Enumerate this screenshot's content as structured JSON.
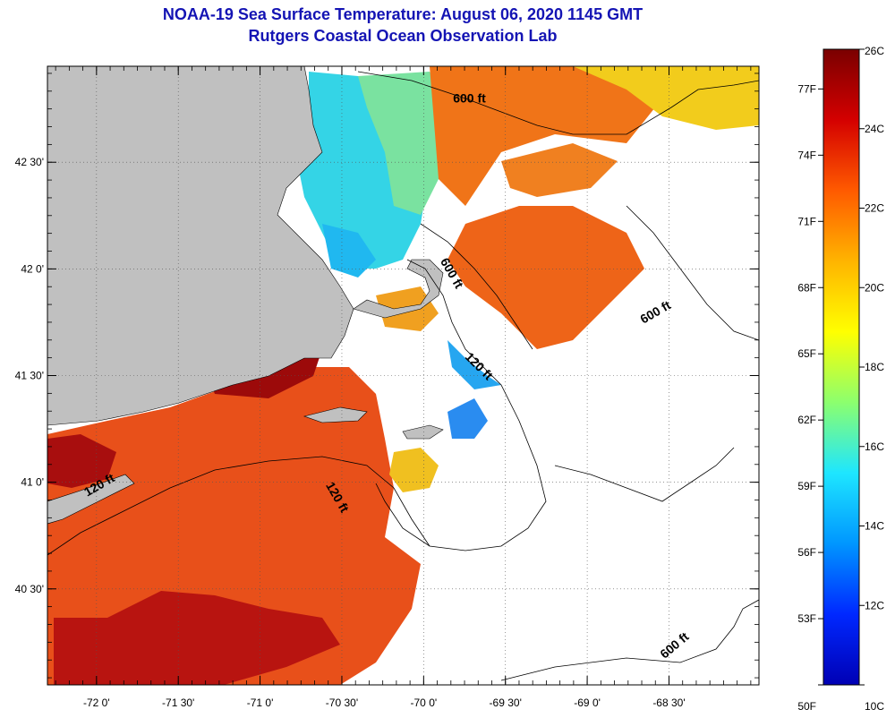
{
  "header": {
    "title": "NOAA-19 Sea Surface Temperature:  August 06, 2020 1145 GMT",
    "subtitle": "Rutgers Coastal Ocean Observation Lab"
  },
  "map": {
    "lon_range": [
      -72.3,
      -67.95
    ],
    "lat_range": [
      40.05,
      42.95
    ],
    "lon_ticks": [
      {
        "value": -72.0,
        "label": "-72 0'"
      },
      {
        "value": -71.5,
        "label": "-71 30'"
      },
      {
        "value": -71.0,
        "label": "-71 0'"
      },
      {
        "value": -70.5,
        "label": "-70 30'"
      },
      {
        "value": -70.0,
        "label": "-70 0'"
      },
      {
        "value": -69.5,
        "label": "-69 30'"
      },
      {
        "value": -69.0,
        "label": "-69 0'"
      },
      {
        "value": -68.5,
        "label": "-68 30'"
      }
    ],
    "lat_ticks": [
      {
        "value": 42.5,
        "label": "42 30'"
      },
      {
        "value": 42.0,
        "label": "42 0'"
      },
      {
        "value": 41.5,
        "label": "41 30'"
      },
      {
        "value": 41.0,
        "label": "41 0'"
      },
      {
        "value": 40.5,
        "label": "40 30'"
      }
    ],
    "contour_labels": [
      {
        "text": "600 ft",
        "lon": -69.72,
        "lat": 42.78,
        "rotate": 0
      },
      {
        "text": "600 ft",
        "lon": -69.85,
        "lat": 41.97,
        "rotate": 60
      },
      {
        "text": "600 ft",
        "lon": -68.57,
        "lat": 41.78,
        "rotate": -30
      },
      {
        "text": "120 ft",
        "lon": -69.68,
        "lat": 41.53,
        "rotate": 45
      },
      {
        "text": "120 ft",
        "lon": -71.97,
        "lat": 40.97,
        "rotate": -30
      },
      {
        "text": "120 ft",
        "lon": -70.55,
        "lat": 40.92,
        "rotate": 60
      },
      {
        "text": "600 ft",
        "lon": -68.45,
        "lat": 40.22,
        "rotate": -40
      }
    ],
    "colors": {
      "land": "#c0c0c0",
      "warm": "#e84a0c",
      "hot": "#b80e0e",
      "orange": "#f07818",
      "yellow": "#f0d020",
      "cyan": "#30d8e8",
      "teal": "#60e0b0",
      "blue": "#1840ff"
    }
  },
  "colorbar": {
    "min_c": 10,
    "max_c": 26,
    "celsius_labels": [
      {
        "value": 26,
        "label": "26C"
      },
      {
        "value": 24,
        "label": "24C"
      },
      {
        "value": 22,
        "label": "22C"
      },
      {
        "value": 20,
        "label": "20C"
      },
      {
        "value": 18,
        "label": "18C"
      },
      {
        "value": 16,
        "label": "16C"
      },
      {
        "value": 14,
        "label": "14C"
      },
      {
        "value": 12,
        "label": "12C"
      },
      {
        "value": 10,
        "label": "10C"
      }
    ],
    "fahrenheit_labels": [
      {
        "value": 77,
        "label": "77F"
      },
      {
        "value": 74,
        "label": "74F"
      },
      {
        "value": 71,
        "label": "71F"
      },
      {
        "value": 68,
        "label": "68F"
      },
      {
        "value": 65,
        "label": "65F"
      },
      {
        "value": 62,
        "label": "62F"
      },
      {
        "value": 59,
        "label": "59F"
      },
      {
        "value": 56,
        "label": "56F"
      },
      {
        "value": 53,
        "label": "53F"
      },
      {
        "value": 50,
        "label": "50F"
      }
    ],
    "gradient": [
      "#7a0000",
      "#d40000",
      "#ff5a00",
      "#ffb400",
      "#ffff00",
      "#8cff6e",
      "#1ee6ff",
      "#0096ff",
      "#0028ff",
      "#0000b4"
    ]
  }
}
